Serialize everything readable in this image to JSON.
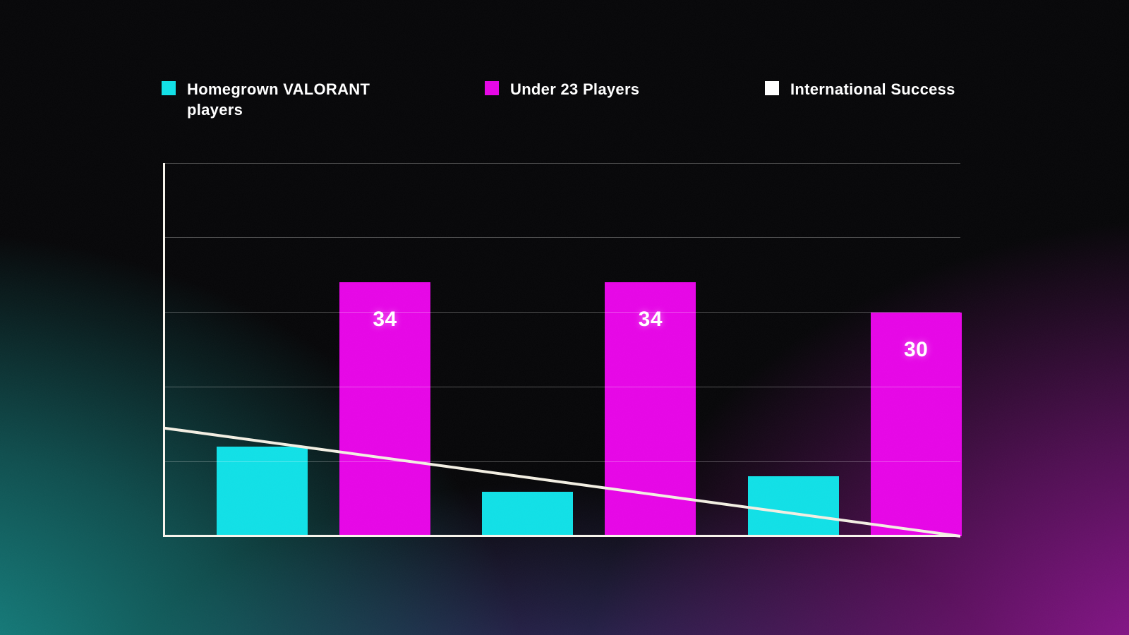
{
  "colors": {
    "cyan_series": "#10dfe6",
    "magenta_series": "#e605e6",
    "line_series": "#f2eee2",
    "axis": "#f7f4ec",
    "text": "#ffffff",
    "bg_top": "#060608",
    "bg_bottom_left": "#179492",
    "bg_bottom_right": "#a518a8"
  },
  "legend": {
    "position": "top",
    "items": [
      {
        "label": "Homegrown VALORANT players",
        "swatch_color": "#10dfe6"
      },
      {
        "label": "Under 23 Players",
        "swatch_color": "#e605e6"
      },
      {
        "label": "International Success",
        "swatch_color": "#ffffff"
      }
    ]
  },
  "chart_data": {
    "type": "bar",
    "title": "",
    "xlabel": "",
    "ylabel": "",
    "categories": [
      "",
      "",
      ""
    ],
    "ylim": [
      0,
      50
    ],
    "yticks": [
      0,
      10,
      20,
      30,
      40,
      50
    ],
    "grid": "horizontal",
    "legend_position": "top",
    "series": [
      {
        "name": "Homegrown VALORANT players",
        "type": "bar",
        "color": "#10dfe6",
        "values": [
          12,
          6,
          8
        ],
        "data_labels": [
          "",
          "",
          ""
        ]
      },
      {
        "name": "Under 23 Players",
        "type": "bar",
        "color": "#e605e6",
        "values": [
          34,
          34,
          30
        ],
        "data_labels": [
          "34",
          "34",
          "30"
        ]
      },
      {
        "name": "International Success",
        "type": "line",
        "color": "#f2eee2",
        "start_value": 14.5,
        "end_value": 0,
        "values_at_groups": [
          12.6,
          7.5,
          2.4
        ]
      }
    ]
  }
}
